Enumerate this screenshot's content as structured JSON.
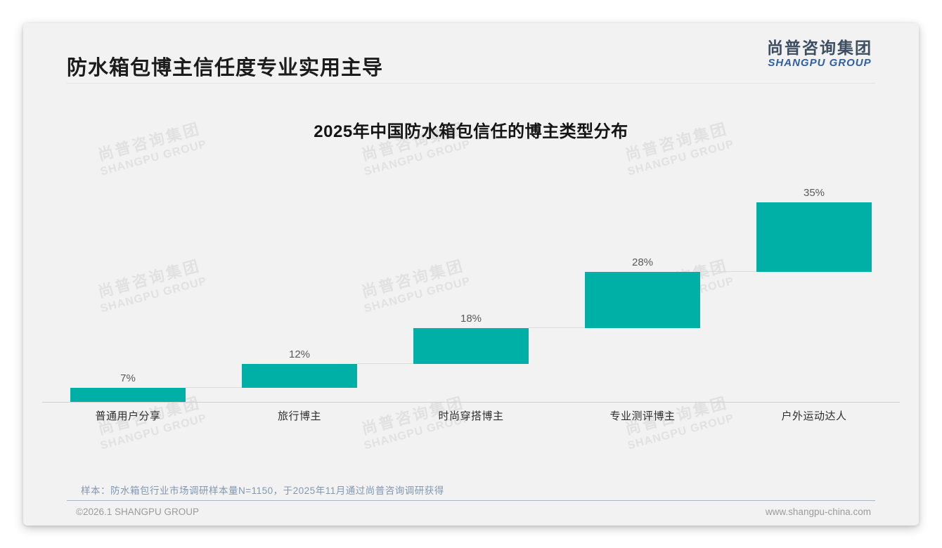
{
  "page": {
    "title": "防水箱包博主信任度专业实用主导",
    "logo": {
      "cn": "尚普咨询集团",
      "en": "SHANGPU GROUP"
    },
    "watermark": {
      "cn": "尚普咨询集团",
      "en": "SHANGPU GROUP"
    },
    "source_note": "样本：防水箱包行业市场调研样本量N=1150，于2025年11月通过尚普咨询调研获得",
    "footer": {
      "copyright": "©2026.1 SHANGPU GROUP",
      "website": "www.shangpu-china.com"
    }
  },
  "colors": {
    "bar": "#00AFA6",
    "logo_blue": "#2F5FA0",
    "card_background": "#F2F2F3"
  },
  "chart_data": {
    "type": "bar",
    "subtype": "waterfall",
    "title": "2025年中国防水箱包信任的博主类型分布",
    "categories": [
      "普通用户分享",
      "旅行博主",
      "时尚穿搭博主",
      "专业测评博主",
      "户外运动达人"
    ],
    "values": [
      7,
      12,
      18,
      28,
      35
    ],
    "data_labels": [
      "7%",
      "12%",
      "18%",
      "28%",
      "35%"
    ],
    "cumulative_start": [
      0,
      7,
      19,
      37,
      65
    ],
    "xlabel": "",
    "ylabel": "",
    "ylim": [
      0,
      100
    ],
    "grid": false,
    "legend_position": "none",
    "bar_color": "#00AFA6"
  }
}
